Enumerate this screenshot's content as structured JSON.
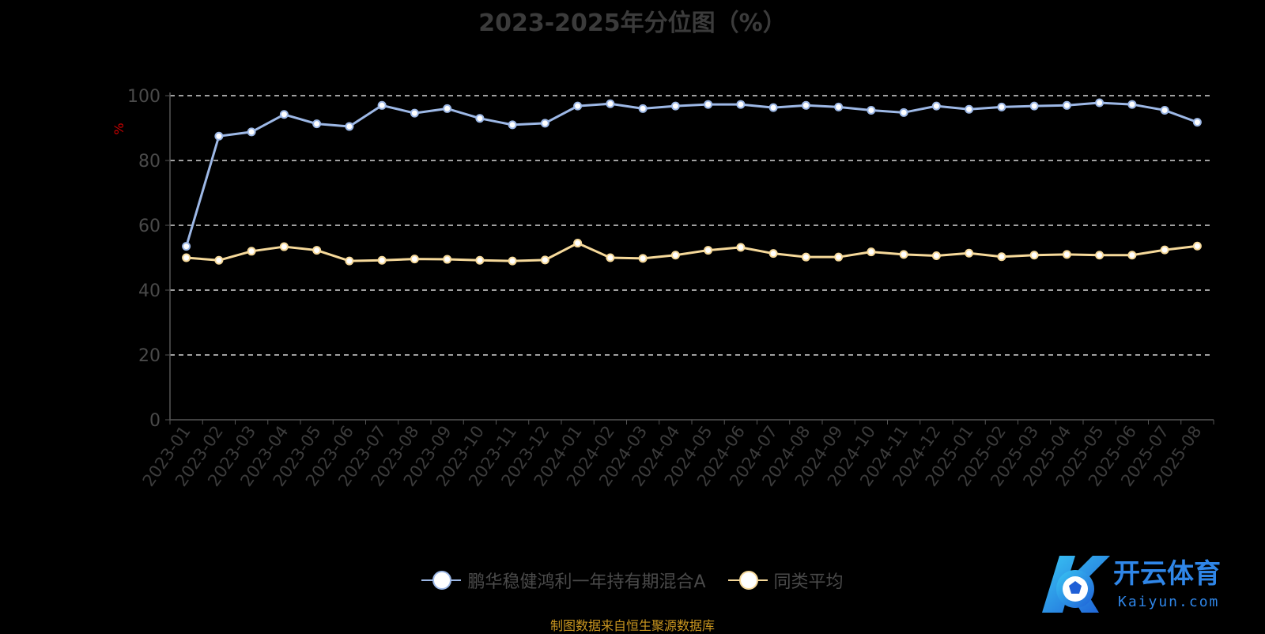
{
  "title": "2023-2025年分位图（%）",
  "source": "制图数据来自恒生聚源数据库",
  "logo": {
    "text_cn": "开云体育",
    "text_en": "Kaiyun.com"
  },
  "colors": {
    "series1": "#9db8e6",
    "series2": "#f6d99a",
    "axis": "#555555",
    "grid": "#ffffff",
    "unit": "#cc0000"
  },
  "chart_data": {
    "type": "line",
    "title": "2023-2025年分位图（%）",
    "ylabel": "%",
    "ylim": [
      0,
      100
    ],
    "yticks": [
      0,
      20,
      40,
      60,
      80,
      100
    ],
    "grid": true,
    "legend_position": "bottom",
    "categories": [
      "2023-01",
      "2023-02",
      "2023-03",
      "2023-04",
      "2023-05",
      "2023-06",
      "2023-07",
      "2023-08",
      "2023-09",
      "2023-10",
      "2023-11",
      "2023-12",
      "2024-01",
      "2024-02",
      "2024-03",
      "2024-04",
      "2024-05",
      "2024-06",
      "2024-07",
      "2024-08",
      "2024-09",
      "2024-10",
      "2024-11",
      "2024-12",
      "2025-01",
      "2025-02",
      "2025-03",
      "2025-04",
      "2025-05",
      "2025-06",
      "2025-07",
      "2025-08"
    ],
    "series": [
      {
        "name": "鹏华稳健鸿利一年持有期混合A",
        "values": [
          53.5,
          87.5,
          88.8,
          94.2,
          91.3,
          90.5,
          97.0,
          94.6,
          96.0,
          93.0,
          91.0,
          91.5,
          96.8,
          97.5,
          96.0,
          96.8,
          97.3,
          97.3,
          96.3,
          97.0,
          96.5,
          95.5,
          94.8,
          96.8,
          95.8,
          96.5,
          96.8,
          97.0,
          97.8,
          97.3,
          95.5,
          91.8
        ]
      },
      {
        "name": "同类平均",
        "values": [
          50.0,
          49.2,
          52.0,
          53.4,
          52.3,
          49.0,
          49.2,
          49.6,
          49.5,
          49.2,
          49.0,
          49.3,
          54.5,
          50.0,
          49.8,
          50.8,
          52.3,
          53.2,
          51.3,
          50.2,
          50.2,
          51.8,
          51.0,
          50.6,
          51.4,
          50.3,
          50.8,
          51.0,
          50.8,
          50.8,
          52.4,
          53.6
        ]
      }
    ]
  }
}
